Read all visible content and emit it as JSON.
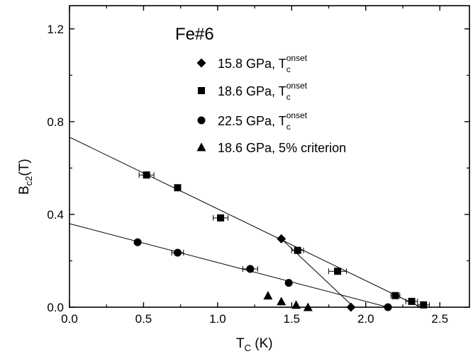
{
  "chart_data": {
    "type": "scatter",
    "dataset_label": "Fe#6",
    "x_axis": {
      "label": "T",
      "label_sub": "C",
      "label_unit": " (K)",
      "range": [
        0.0,
        2.7
      ],
      "ticks": [
        0.0,
        0.5,
        1.0,
        1.5,
        2.0,
        2.5
      ],
      "tick_labels": [
        "0.0",
        "0.5",
        "1.0",
        "1.5",
        "2.0",
        "2.5"
      ]
    },
    "y_axis": {
      "label": "B",
      "label_sub": "c2",
      "label_unit": "(T)",
      "range": [
        0.0,
        1.3
      ],
      "ticks": [
        0.0,
        0.4,
        0.8,
        1.2
      ],
      "tick_labels": [
        "0.0",
        "0.4",
        "0.8",
        "1.2"
      ]
    },
    "grid": false,
    "legend_position": "top-right",
    "series": [
      {
        "legend_text": "15.8 GPa, T",
        "legend_sub": "c",
        "legend_sup": "onset",
        "marker": "diamond",
        "points": [
          [
            1.43,
            0.295
          ],
          [
            1.9,
            0.0
          ]
        ]
      },
      {
        "legend_text": "18.6 GPa, T",
        "legend_sub": "c",
        "legend_sup": "onset",
        "marker": "square",
        "points": [
          [
            0.52,
            0.57
          ],
          [
            0.73,
            0.515
          ],
          [
            1.02,
            0.385
          ],
          [
            1.54,
            0.245
          ],
          [
            1.81,
            0.155
          ],
          [
            2.2,
            0.05
          ],
          [
            2.31,
            0.025
          ],
          [
            2.39,
            0.01
          ]
        ],
        "xerr": [
          0.05,
          0.0,
          0.05,
          0.04,
          0.06,
          0.03,
          0.04,
          0.04
        ]
      },
      {
        "legend_text": "22.5 GPa, T",
        "legend_sub": "c",
        "legend_sup": "onset",
        "marker": "circle",
        "points": [
          [
            0.46,
            0.28
          ],
          [
            0.73,
            0.235
          ],
          [
            1.22,
            0.165
          ],
          [
            1.48,
            0.105
          ],
          [
            2.15,
            0.0
          ]
        ],
        "xerr": [
          0.0,
          0.04,
          0.05,
          0.0,
          0.0
        ]
      },
      {
        "legend_text": "18.6 GPa, 5% criterion",
        "marker": "triangle",
        "points": [
          [
            1.34,
            0.05
          ],
          [
            1.43,
            0.025
          ],
          [
            1.53,
            0.01
          ],
          [
            1.61,
            0.0
          ]
        ]
      }
    ],
    "fit_lines": [
      {
        "points": [
          [
            0.0,
            0.733
          ],
          [
            2.37,
            0.0
          ]
        ]
      },
      {
        "points": [
          [
            0.0,
            0.36
          ],
          [
            2.15,
            0.0
          ]
        ]
      },
      {
        "points": [
          [
            1.43,
            0.295
          ],
          [
            1.92,
            0.0
          ]
        ]
      }
    ]
  }
}
